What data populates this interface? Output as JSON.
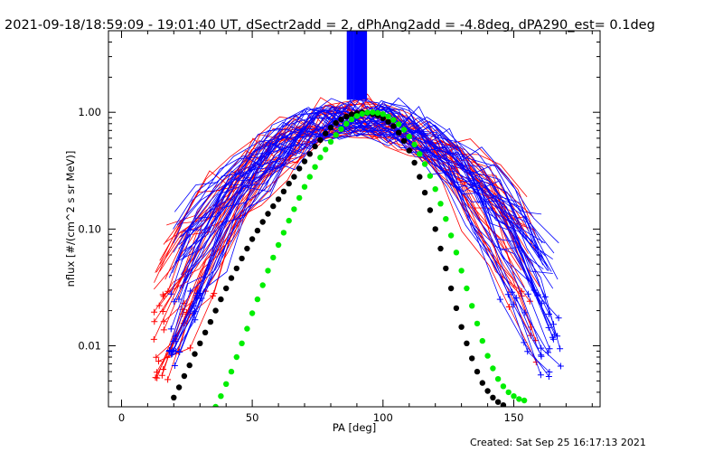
{
  "chart_data": {
    "type": "line",
    "title": "2021-09-18/18:59:09 - 19:01:40 UT, dSectr2add = 2, dPhAng2add = -4.8deg, dPA290_est=  0.1deg",
    "xlabel": "PA [deg]",
    "ylabel": "nflux [#/(cm^2 s sr MeV)]",
    "footer": "Created: Sat Sep 25 16:17:13 2021",
    "xlim": [
      -5,
      183
    ],
    "ylim": [
      0.003,
      5.0
    ],
    "yscale": "log",
    "x_ticks": [
      {
        "value": 0,
        "label": "0"
      },
      {
        "value": 50,
        "label": "50"
      },
      {
        "value": 100,
        "label": "100"
      },
      {
        "value": 150,
        "label": "150"
      }
    ],
    "y_ticks": [
      {
        "value": 0.01,
        "label": "0.01"
      },
      {
        "value": 0.1,
        "label": "0.10"
      },
      {
        "value": 1.0,
        "label": "1.00"
      }
    ],
    "colors": {
      "red": "#ff0000",
      "blue": "#0000ff",
      "green": "#00ee00",
      "black": "#000000"
    },
    "series": [
      {
        "color": "#000000",
        "marker": "filled-circle",
        "note": "black dotted reference curve",
        "points": [
          [
            20,
            0.0036
          ],
          [
            22,
            0.0044
          ],
          [
            24,
            0.0055
          ],
          [
            26,
            0.0068
          ],
          [
            28,
            0.0085
          ],
          [
            30,
            0.0105
          ],
          [
            32,
            0.013
          ],
          [
            34,
            0.016
          ],
          [
            36,
            0.02
          ],
          [
            38,
            0.025
          ],
          [
            40,
            0.031
          ],
          [
            42,
            0.038
          ],
          [
            44,
            0.046
          ],
          [
            46,
            0.056
          ],
          [
            48,
            0.068
          ],
          [
            50,
            0.082
          ],
          [
            52,
            0.097
          ],
          [
            54,
            0.115
          ],
          [
            56,
            0.135
          ],
          [
            58,
            0.157
          ],
          [
            60,
            0.18
          ],
          [
            62,
            0.21
          ],
          [
            64,
            0.245
          ],
          [
            66,
            0.28
          ],
          [
            68,
            0.33
          ],
          [
            70,
            0.38
          ],
          [
            72,
            0.44
          ],
          [
            74,
            0.51
          ],
          [
            76,
            0.58
          ],
          [
            78,
            0.66
          ],
          [
            80,
            0.74
          ],
          [
            82,
            0.81
          ],
          [
            84,
            0.87
          ],
          [
            86,
            0.92
          ],
          [
            88,
            0.96
          ],
          [
            90,
            0.985
          ],
          [
            92,
            0.995
          ],
          [
            94,
            0.99
          ],
          [
            96,
            0.97
          ],
          [
            98,
            0.94
          ],
          [
            100,
            0.89
          ],
          [
            102,
            0.83
          ],
          [
            104,
            0.76
          ],
          [
            106,
            0.67
          ],
          [
            108,
            0.57
          ],
          [
            110,
            0.47
          ],
          [
            112,
            0.37
          ],
          [
            114,
            0.28
          ],
          [
            116,
            0.205
          ],
          [
            118,
            0.145
          ],
          [
            120,
            0.1
          ],
          [
            122,
            0.068
          ],
          [
            124,
            0.046
          ],
          [
            126,
            0.031
          ],
          [
            128,
            0.021
          ],
          [
            130,
            0.0145
          ],
          [
            132,
            0.0105
          ],
          [
            134,
            0.0078
          ],
          [
            136,
            0.006
          ],
          [
            138,
            0.0048
          ],
          [
            140,
            0.0041
          ],
          [
            142,
            0.0036
          ],
          [
            144,
            0.0033
          ],
          [
            146,
            0.0031
          ]
        ]
      },
      {
        "color": "#00ee00",
        "marker": "filled-circle",
        "note": "green dotted fitted curve",
        "points": [
          [
            36,
            0.003
          ],
          [
            38,
            0.0037
          ],
          [
            40,
            0.0047
          ],
          [
            42,
            0.006
          ],
          [
            44,
            0.008
          ],
          [
            46,
            0.0105
          ],
          [
            48,
            0.014
          ],
          [
            50,
            0.019
          ],
          [
            52,
            0.025
          ],
          [
            54,
            0.033
          ],
          [
            56,
            0.044
          ],
          [
            58,
            0.057
          ],
          [
            60,
            0.073
          ],
          [
            62,
            0.093
          ],
          [
            64,
            0.118
          ],
          [
            66,
            0.148
          ],
          [
            68,
            0.185
          ],
          [
            70,
            0.23
          ],
          [
            72,
            0.28
          ],
          [
            74,
            0.34
          ],
          [
            76,
            0.41
          ],
          [
            78,
            0.48
          ],
          [
            80,
            0.56
          ],
          [
            82,
            0.64
          ],
          [
            84,
            0.72
          ],
          [
            86,
            0.8
          ],
          [
            88,
            0.87
          ],
          [
            90,
            0.93
          ],
          [
            92,
            0.97
          ],
          [
            94,
            0.995
          ],
          [
            96,
            1.0
          ],
          [
            98,
            0.99
          ],
          [
            100,
            0.965
          ],
          [
            102,
            0.92
          ],
          [
            104,
            0.86
          ],
          [
            106,
            0.79
          ],
          [
            108,
            0.71
          ],
          [
            110,
            0.62
          ],
          [
            112,
            0.53
          ],
          [
            114,
            0.44
          ],
          [
            116,
            0.36
          ],
          [
            118,
            0.285
          ],
          [
            120,
            0.22
          ],
          [
            122,
            0.165
          ],
          [
            124,
            0.122
          ],
          [
            126,
            0.088
          ],
          [
            128,
            0.063
          ],
          [
            130,
            0.044
          ],
          [
            132,
            0.031
          ],
          [
            134,
            0.022
          ],
          [
            136,
            0.0155
          ],
          [
            138,
            0.011
          ],
          [
            140,
            0.0082
          ],
          [
            142,
            0.0064
          ],
          [
            144,
            0.0052
          ],
          [
            146,
            0.0045
          ],
          [
            148,
            0.004
          ],
          [
            150,
            0.0037
          ],
          [
            152,
            0.0035
          ],
          [
            154,
            0.0034
          ]
        ]
      }
    ],
    "bundles": [
      {
        "color": "#ff0000",
        "marker": "plus",
        "note": "many red measured PA distributions",
        "count": 30,
        "pa_start": 12,
        "pa_end": 160,
        "step": 7,
        "peak_pa": 90,
        "width": 27,
        "low_flux": 0.005
      },
      {
        "color": "#0000ff",
        "marker": "plus",
        "note": "many blue measured PA distributions",
        "count": 40,
        "pa_start": 18,
        "pa_end": 168,
        "step": 7,
        "peak_pa": 91,
        "width": 27,
        "low_flux": 0.006
      }
    ],
    "vertical_bars": {
      "color": "#0000ff",
      "note": "cluster of blue vertical bars above the peak, drawn from the top axis down",
      "x_values": [
        86.5,
        87.2,
        87.9,
        88.6,
        89.3,
        90.0,
        90.7,
        91.4,
        92.1,
        92.8,
        93.5
      ],
      "y_bottom": 1.28
    },
    "grid": false,
    "legend": "none"
  }
}
